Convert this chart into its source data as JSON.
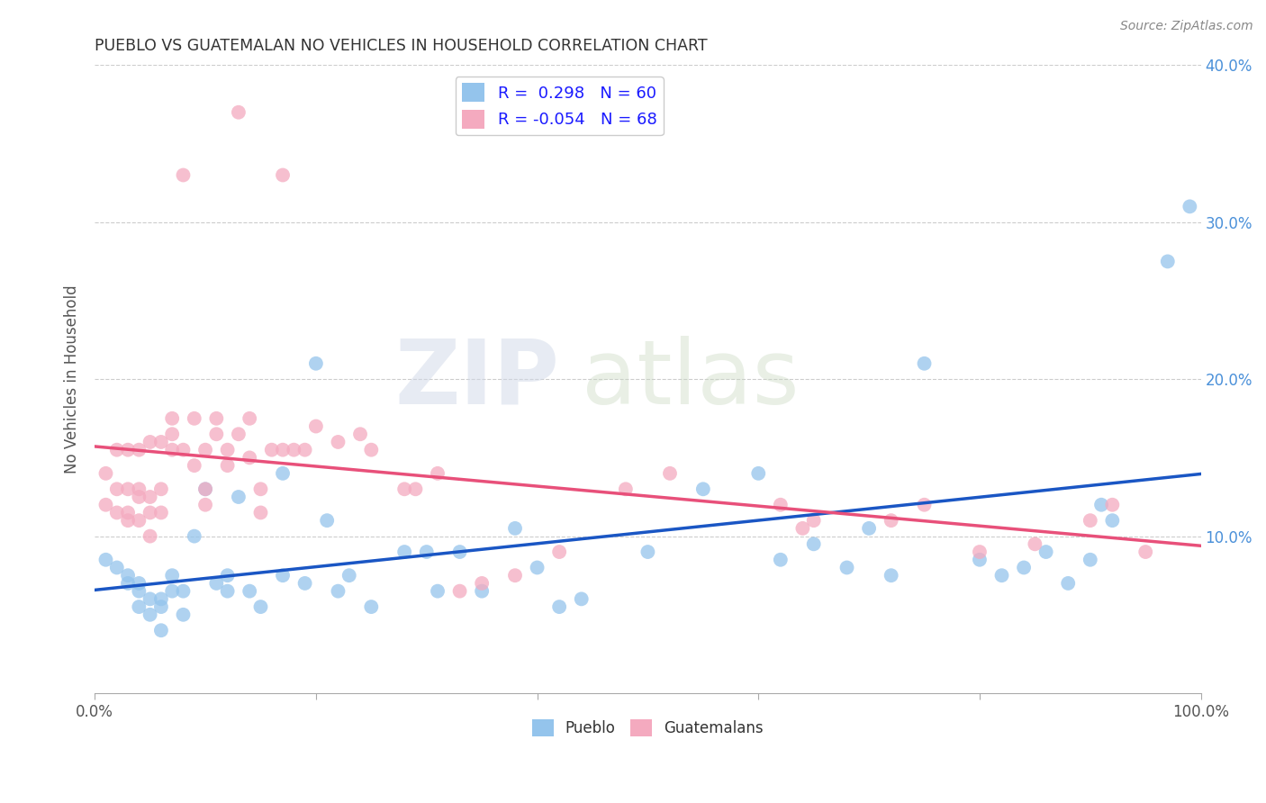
{
  "title": "PUEBLO VS GUATEMALAN NO VEHICLES IN HOUSEHOLD CORRELATION CHART",
  "source": "Source: ZipAtlas.com",
  "ylabel": "No Vehicles in Household",
  "xlim": [
    0,
    1.0
  ],
  "ylim": [
    0,
    0.4
  ],
  "xticks": [
    0.0,
    0.2,
    0.4,
    0.6,
    0.8,
    1.0
  ],
  "xticklabels_sparse": [
    "0.0%",
    "",
    "",
    "",
    "",
    "100.0%"
  ],
  "yticks": [
    0.0,
    0.1,
    0.2,
    0.3,
    0.4
  ],
  "yticklabels": [
    "",
    "10.0%",
    "20.0%",
    "30.0%",
    "40.0%"
  ],
  "pueblo_color": "#94C4EC",
  "guatemalan_color": "#F4AABF",
  "pueblo_line_color": "#1A56C4",
  "guatemalan_line_color": "#E8507A",
  "pueblo_R": 0.298,
  "pueblo_N": 60,
  "guatemalan_R": -0.054,
  "guatemalan_N": 68,
  "legend_label_pueblo": "Pueblo",
  "legend_label_guatemalan": "Guatemalans",
  "watermark_zip": "ZIP",
  "watermark_atlas": "atlas",
  "pueblo_x": [
    0.01,
    0.02,
    0.03,
    0.03,
    0.04,
    0.04,
    0.04,
    0.05,
    0.05,
    0.06,
    0.06,
    0.06,
    0.07,
    0.07,
    0.08,
    0.08,
    0.09,
    0.1,
    0.11,
    0.12,
    0.12,
    0.13,
    0.14,
    0.15,
    0.17,
    0.17,
    0.19,
    0.2,
    0.21,
    0.22,
    0.23,
    0.25,
    0.28,
    0.3,
    0.31,
    0.33,
    0.35,
    0.38,
    0.4,
    0.42,
    0.44,
    0.5,
    0.55,
    0.6,
    0.62,
    0.65,
    0.68,
    0.7,
    0.72,
    0.75,
    0.8,
    0.82,
    0.84,
    0.86,
    0.88,
    0.9,
    0.91,
    0.92,
    0.97,
    0.99
  ],
  "pueblo_y": [
    0.085,
    0.08,
    0.07,
    0.075,
    0.065,
    0.07,
    0.055,
    0.05,
    0.06,
    0.04,
    0.055,
    0.06,
    0.065,
    0.075,
    0.05,
    0.065,
    0.1,
    0.13,
    0.07,
    0.065,
    0.075,
    0.125,
    0.065,
    0.055,
    0.075,
    0.14,
    0.07,
    0.21,
    0.11,
    0.065,
    0.075,
    0.055,
    0.09,
    0.09,
    0.065,
    0.09,
    0.065,
    0.105,
    0.08,
    0.055,
    0.06,
    0.09,
    0.13,
    0.14,
    0.085,
    0.095,
    0.08,
    0.105,
    0.075,
    0.21,
    0.085,
    0.075,
    0.08,
    0.09,
    0.07,
    0.085,
    0.12,
    0.11,
    0.275,
    0.31
  ],
  "guatemalan_x": [
    0.01,
    0.01,
    0.02,
    0.02,
    0.02,
    0.03,
    0.03,
    0.03,
    0.03,
    0.04,
    0.04,
    0.04,
    0.04,
    0.05,
    0.05,
    0.05,
    0.05,
    0.06,
    0.06,
    0.06,
    0.07,
    0.07,
    0.07,
    0.08,
    0.08,
    0.09,
    0.09,
    0.1,
    0.1,
    0.1,
    0.11,
    0.11,
    0.12,
    0.12,
    0.13,
    0.13,
    0.14,
    0.14,
    0.15,
    0.15,
    0.16,
    0.17,
    0.17,
    0.18,
    0.19,
    0.2,
    0.22,
    0.24,
    0.25,
    0.28,
    0.29,
    0.31,
    0.33,
    0.35,
    0.38,
    0.42,
    0.48,
    0.52,
    0.62,
    0.64,
    0.65,
    0.72,
    0.75,
    0.8,
    0.85,
    0.9,
    0.92,
    0.95
  ],
  "guatemalan_y": [
    0.12,
    0.14,
    0.115,
    0.13,
    0.155,
    0.11,
    0.115,
    0.13,
    0.155,
    0.11,
    0.125,
    0.13,
    0.155,
    0.1,
    0.115,
    0.125,
    0.16,
    0.115,
    0.13,
    0.16,
    0.155,
    0.165,
    0.175,
    0.33,
    0.155,
    0.145,
    0.175,
    0.12,
    0.13,
    0.155,
    0.165,
    0.175,
    0.145,
    0.155,
    0.37,
    0.165,
    0.15,
    0.175,
    0.115,
    0.13,
    0.155,
    0.33,
    0.155,
    0.155,
    0.155,
    0.17,
    0.16,
    0.165,
    0.155,
    0.13,
    0.13,
    0.14,
    0.065,
    0.07,
    0.075,
    0.09,
    0.13,
    0.14,
    0.12,
    0.105,
    0.11,
    0.11,
    0.12,
    0.09,
    0.095,
    0.11,
    0.12,
    0.09
  ]
}
